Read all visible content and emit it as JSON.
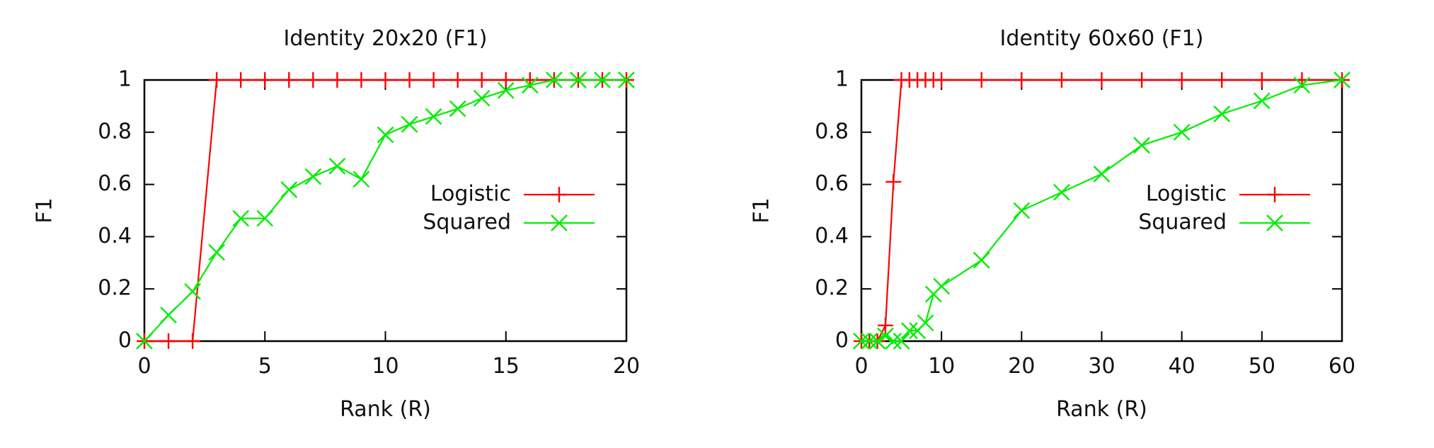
{
  "chart_data": [
    {
      "type": "line",
      "title": "Identity 20x20 (F1)",
      "xlabel": "Rank (R)",
      "ylabel": "F1",
      "xlim": [
        0,
        20
      ],
      "ylim": [
        0,
        1
      ],
      "xticks": [
        "0",
        "5",
        "10",
        "15",
        "20"
      ],
      "yticks": [
        "0",
        "0.2",
        "0.4",
        "0.6",
        "0.8",
        "1"
      ],
      "grid": false,
      "legend": "right",
      "series": [
        {
          "name": "Logistic",
          "color": "#ff0000",
          "marker": "plus",
          "x": [
            0,
            1,
            2,
            3,
            4,
            5,
            6,
            7,
            8,
            9,
            10,
            11,
            12,
            13,
            14,
            15,
            16,
            17,
            18,
            19,
            20
          ],
          "y": [
            0,
            0,
            0,
            1,
            1,
            1,
            1,
            1,
            1,
            1,
            1,
            1,
            1,
            1,
            1,
            1,
            1,
            1,
            1,
            1,
            1
          ]
        },
        {
          "name": "Squared",
          "color": "#00ee00",
          "marker": "cross",
          "x": [
            0,
            1,
            2,
            3,
            4,
            5,
            6,
            7,
            8,
            9,
            10,
            11,
            12,
            13,
            14,
            15,
            16,
            17,
            18,
            19,
            20
          ],
          "y": [
            0,
            0.1,
            0.19,
            0.34,
            0.47,
            0.47,
            0.58,
            0.63,
            0.67,
            0.62,
            0.79,
            0.83,
            0.86,
            0.89,
            0.93,
            0.96,
            0.98,
            1,
            1,
            1,
            1
          ]
        }
      ]
    },
    {
      "type": "line",
      "title": "Identity 60x60 (F1)",
      "xlabel": "Rank (R)",
      "ylabel": "F1",
      "xlim": [
        0,
        60
      ],
      "ylim": [
        0,
        1
      ],
      "xticks": [
        "0",
        "10",
        "20",
        "30",
        "40",
        "50",
        "60"
      ],
      "yticks": [
        "0",
        "0.2",
        "0.4",
        "0.6",
        "0.8",
        "1"
      ],
      "grid": false,
      "legend": "right",
      "series": [
        {
          "name": "Logistic",
          "color": "#ff0000",
          "marker": "plus",
          "x": [
            0,
            1,
            2,
            3,
            4,
            5,
            6,
            7,
            8,
            9,
            10,
            15,
            20,
            25,
            30,
            35,
            40,
            45,
            50,
            55,
            60
          ],
          "y": [
            0,
            0,
            0,
            0.06,
            0.61,
            1,
            1,
            1,
            1,
            1,
            1,
            1,
            1,
            1,
            1,
            1,
            1,
            1,
            1,
            1,
            1
          ]
        },
        {
          "name": "Squared",
          "color": "#00ee00",
          "marker": "cross",
          "x": [
            0,
            1,
            2,
            3,
            4,
            5,
            6,
            7,
            8,
            9,
            10,
            15,
            20,
            25,
            30,
            35,
            40,
            45,
            50,
            55,
            60
          ],
          "y": [
            0,
            0,
            0,
            0.02,
            0,
            0,
            0.04,
            0.04,
            0.07,
            0.18,
            0.21,
            0.31,
            0.5,
            0.57,
            0.64,
            0.75,
            0.8,
            0.87,
            0.92,
            0.98,
            1
          ]
        }
      ]
    }
  ]
}
